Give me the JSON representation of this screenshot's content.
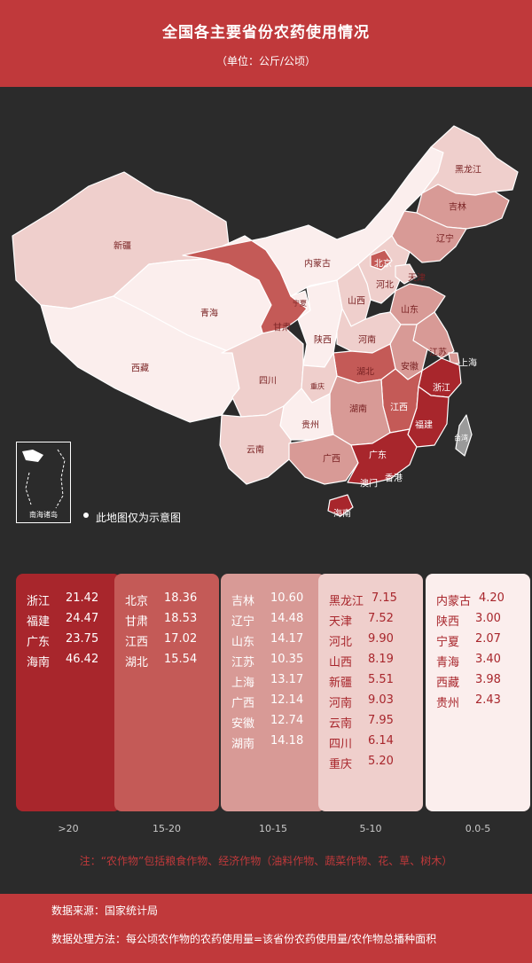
{
  "title": "全国各主要省份农药使用情况",
  "unit": "（单位：公斤/公顷）",
  "map": {
    "disclaimer": "此地图仅为示意图",
    "inset_label": "南海诸岛",
    "regions": {
      "xinjiang": "新疆",
      "xizang": "西藏",
      "qinghai": "青海",
      "gansu": "甘肃",
      "neimenggu": "内蒙古",
      "heilongjiang": "黑龙江",
      "jilin": "吉林",
      "liaoning": "辽宁",
      "beijing": "北京",
      "tianjin": "天津",
      "hebei": "河北",
      "shanxi": "山西",
      "shandong": "山东",
      "ningxia": "宁夏",
      "shaanxi": "陕西",
      "henan": "河南",
      "jiangsu": "江苏",
      "shanghai": "上海",
      "anhui": "安徽",
      "hubei": "湖北",
      "sichuan": "四川",
      "chongqing": "重庆",
      "zhejiang": "浙江",
      "hunan": "湖南",
      "jiangxi": "江西",
      "guizhou": "贵州",
      "yunnan": "云南",
      "guangxi": "广西",
      "guangdong": "广东",
      "fujian": "福建",
      "taiwan": "台湾",
      "hongkong": "香港",
      "macau": "澳门",
      "hainan": "海南"
    },
    "colors": {
      "tier_gt20": "#a8262c",
      "tier_15_20": "#c45a57",
      "tier_10_15": "#d89a96",
      "tier_5_10": "#efcfcc",
      "tier_0_5": "#fbeeed"
    }
  },
  "tiers": [
    {
      "range": ">20",
      "rows": [
        {
          "name": "浙江",
          "value": "21.42"
        },
        {
          "name": "福建",
          "value": "24.47"
        },
        {
          "name": "广东",
          "value": "23.75"
        },
        {
          "name": "海南",
          "value": "46.42"
        }
      ]
    },
    {
      "range": "15-20",
      "rows": [
        {
          "name": "北京",
          "value": "18.36"
        },
        {
          "name": "甘肃",
          "value": "18.53"
        },
        {
          "name": "江西",
          "value": "17.02"
        },
        {
          "name": "湖北",
          "value": "15.54"
        }
      ]
    },
    {
      "range": "10-15",
      "rows": [
        {
          "name": "吉林",
          "value": "10.60"
        },
        {
          "name": "辽宁",
          "value": "14.48"
        },
        {
          "name": "山东",
          "value": "14.17"
        },
        {
          "name": "江苏",
          "value": "10.35"
        },
        {
          "name": "上海",
          "value": "13.17"
        },
        {
          "name": "广西",
          "value": "12.14"
        },
        {
          "name": "安徽",
          "value": "12.74"
        },
        {
          "name": "湖南",
          "value": "14.18"
        }
      ]
    },
    {
      "range": "5-10",
      "rows": [
        {
          "name": "黑龙江",
          "value": "7.15"
        },
        {
          "name": "天津",
          "value": "7.52"
        },
        {
          "name": "河北",
          "value": "9.90"
        },
        {
          "name": "山西",
          "value": "8.19"
        },
        {
          "name": "新疆",
          "value": "5.51"
        },
        {
          "name": "河南",
          "value": "9.03"
        },
        {
          "name": "云南",
          "value": "7.95"
        },
        {
          "name": "四川",
          "value": "6.14"
        },
        {
          "name": "重庆",
          "value": "5.20"
        }
      ]
    },
    {
      "range": "0.0-5",
      "rows": [
        {
          "name": "内蒙古",
          "value": "4.20"
        },
        {
          "name": "陕西",
          "value": "3.00"
        },
        {
          "name": "宁夏",
          "value": "2.07"
        },
        {
          "name": "青海",
          "value": "3.40"
        },
        {
          "name": "西藏",
          "value": "3.98"
        },
        {
          "name": "贵州",
          "value": "2.43"
        }
      ]
    }
  ],
  "note": "注：“农作物”包括粮食作物、经济作物（油料作物、蔬菜作物、花、草、树木）",
  "source": "数据来源：国家统计局",
  "method": "数据处理方法：每公顷农作物的农药使用量=该省份农药使用量/农作物总播种面积"
}
